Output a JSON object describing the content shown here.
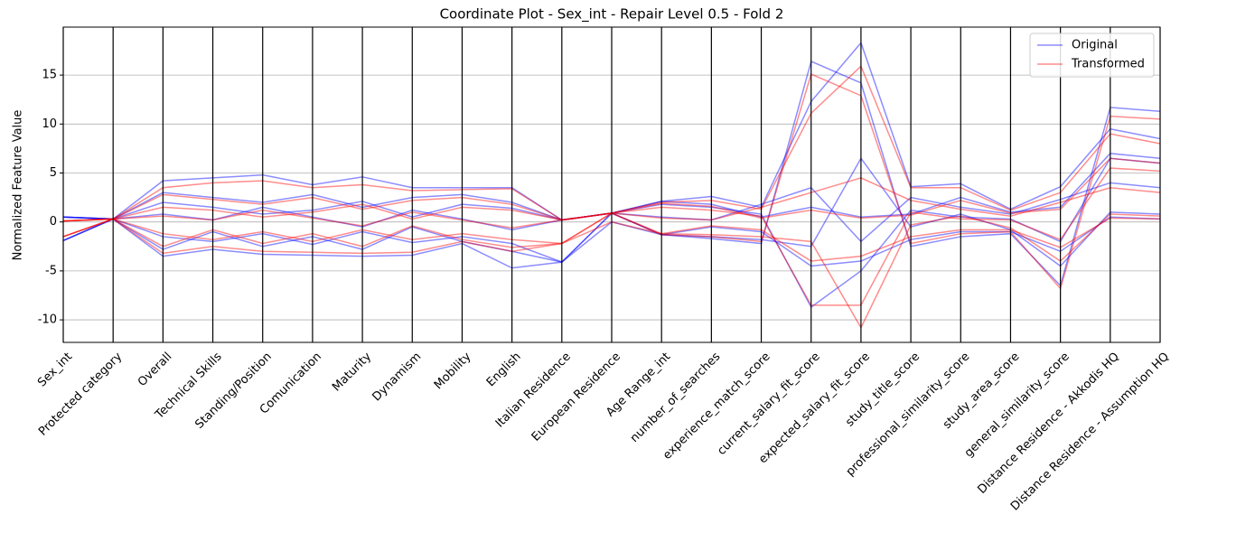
{
  "chart_data": {
    "type": "parallel",
    "title": "Coordinate Plot - Sex_int - Repair Level 0.5 - Fold 2",
    "y_label": "Normalized Feature Value",
    "categories": [
      "Sex_int",
      "Protected category",
      "Overall",
      "Technical Skills",
      "Standing/Position",
      "Comunication",
      "Maturity",
      "Dynamism",
      "Mobility",
      "English",
      "Italian Residence",
      "European Residence",
      "Age Range_int",
      "number_of_searches",
      "experience_match_score",
      "current_salary_fit_score",
      "expected_salary_fit_score",
      "study_title_score",
      "professional_similarity_score",
      "study_area_score",
      "general_similarity_score",
      "Distance Residence - Akkodis HQ",
      "Distance Residence - Assumption HQ"
    ],
    "ylim": [
      -12.3,
      19.9
    ],
    "yticks": [
      -10,
      -5,
      0,
      5,
      10,
      15
    ],
    "grid": true,
    "legend": "upper right",
    "series": [
      {
        "name": "Original",
        "color": "#0000ff",
        "lines": [
          [
            0.5,
            0.3,
            -3.5,
            -2.8,
            -3.3,
            -3.4,
            -3.5,
            -3.4,
            -2.2,
            -4.7,
            -4.1,
            0.9,
            -1.3,
            -1.7,
            -2.2,
            16.4,
            14.2,
            -2.5,
            -1.5,
            -1.2,
            -6.5,
            11.7,
            11.3
          ],
          [
            -1.9,
            0.3,
            4.2,
            4.5,
            4.8,
            3.8,
            4.6,
            3.5,
            3.5,
            3.5,
            0.2,
            0.9,
            2.1,
            2.6,
            1.5,
            12.3,
            18.3,
            3.6,
            3.9,
            1.3,
            3.6,
            9.5,
            8.5
          ],
          [
            0.5,
            0.3,
            2.0,
            1.5,
            0.8,
            1.2,
            2.1,
            0.5,
            1.8,
            1.4,
            0.2,
            0.9,
            1.8,
            1.5,
            0.8,
            -8.7,
            -5.0,
            1.2,
            0.5,
            0.3,
            -2.0,
            6.5,
            6.0
          ],
          [
            -1.9,
            0.3,
            -1.5,
            -2.0,
            -1.2,
            -2.3,
            -1.0,
            -2.1,
            -1.5,
            -2.2,
            -4.1,
            0.0,
            -1.3,
            -1.5,
            -1.8,
            -2.5,
            6.5,
            -0.5,
            0.8,
            -0.8,
            -4.5,
            1.0,
            0.8
          ],
          [
            0.5,
            0.3,
            0.8,
            0.2,
            1.5,
            0.5,
            -0.5,
            1.2,
            0.3,
            -0.8,
            0.2,
            0.9,
            0.5,
            0.2,
            1.8,
            3.5,
            -2.0,
            2.5,
            1.5,
            0.8,
            2.3,
            4.0,
            3.5
          ],
          [
            -1.9,
            0.3,
            -2.8,
            -1.0,
            -2.5,
            -1.5,
            -2.8,
            -0.5,
            -2.0,
            -3.0,
            -4.1,
            0.9,
            -1.3,
            -0.5,
            -1.0,
            -4.5,
            -4.0,
            -1.8,
            -1.0,
            -1.0,
            -3.0,
            0.5,
            0.3
          ],
          [
            0.5,
            0.3,
            3.0,
            2.5,
            2.0,
            2.8,
            1.5,
            2.5,
            2.8,
            2.0,
            0.2,
            0.9,
            2.1,
            1.8,
            0.5,
            1.5,
            0.5,
            0.8,
            2.5,
            1.0,
            1.5,
            7.0,
            6.5
          ]
        ]
      },
      {
        "name": "Transformed",
        "color": "#ff0000",
        "lines": [
          [
            -1.5,
            0.3,
            -3.2,
            -2.5,
            -3.0,
            -3.1,
            -3.2,
            -3.1,
            -2.0,
            -3.0,
            -2.2,
            0.9,
            -1.3,
            -1.5,
            -2.0,
            15.1,
            12.9,
            -2.2,
            -1.2,
            -1.0,
            -6.8,
            10.8,
            10.5
          ],
          [
            0.1,
            0.3,
            3.5,
            4.0,
            4.2,
            3.5,
            3.8,
            3.2,
            3.3,
            3.4,
            0.2,
            0.9,
            2.0,
            2.2,
            1.3,
            11.1,
            15.9,
            3.5,
            3.5,
            1.2,
            3.0,
            9.0,
            8.0
          ],
          [
            0.1,
            0.3,
            1.5,
            1.2,
            0.5,
            1.0,
            1.8,
            0.3,
            1.5,
            1.2,
            0.2,
            0.9,
            1.5,
            1.2,
            0.6,
            -8.5,
            -8.5,
            1.0,
            0.3,
            0.2,
            -1.8,
            5.5,
            5.2
          ],
          [
            -1.5,
            0.3,
            -1.2,
            -1.8,
            -1.0,
            -2.0,
            -0.8,
            -1.8,
            -1.2,
            -1.8,
            -2.2,
            0.0,
            -1.2,
            -1.3,
            -1.5,
            -2.0,
            -10.8,
            -0.3,
            0.6,
            -0.6,
            -4.0,
            0.8,
            0.6
          ],
          [
            0.1,
            0.3,
            0.6,
            0.2,
            1.2,
            0.4,
            -0.4,
            1.0,
            0.2,
            -0.6,
            0.2,
            0.9,
            0.4,
            0.2,
            1.5,
            3.0,
            4.5,
            2.2,
            1.3,
            0.6,
            2.0,
            3.5,
            3.0
          ],
          [
            -1.5,
            0.3,
            -2.5,
            -0.8,
            -2.2,
            -1.2,
            -2.5,
            -0.4,
            -1.8,
            -2.6,
            -2.2,
            0.9,
            -1.2,
            -0.4,
            -0.8,
            -4.0,
            -3.5,
            -1.5,
            -0.8,
            -0.8,
            -2.6,
            0.4,
            0.3
          ],
          [
            0.1,
            0.3,
            2.8,
            2.3,
            1.8,
            2.5,
            1.3,
            2.2,
            2.5,
            1.8,
            0.2,
            0.9,
            1.9,
            1.6,
            0.4,
            1.2,
            0.4,
            0.7,
            2.2,
            0.9,
            1.3,
            6.5,
            6.0
          ]
        ]
      }
    ]
  }
}
